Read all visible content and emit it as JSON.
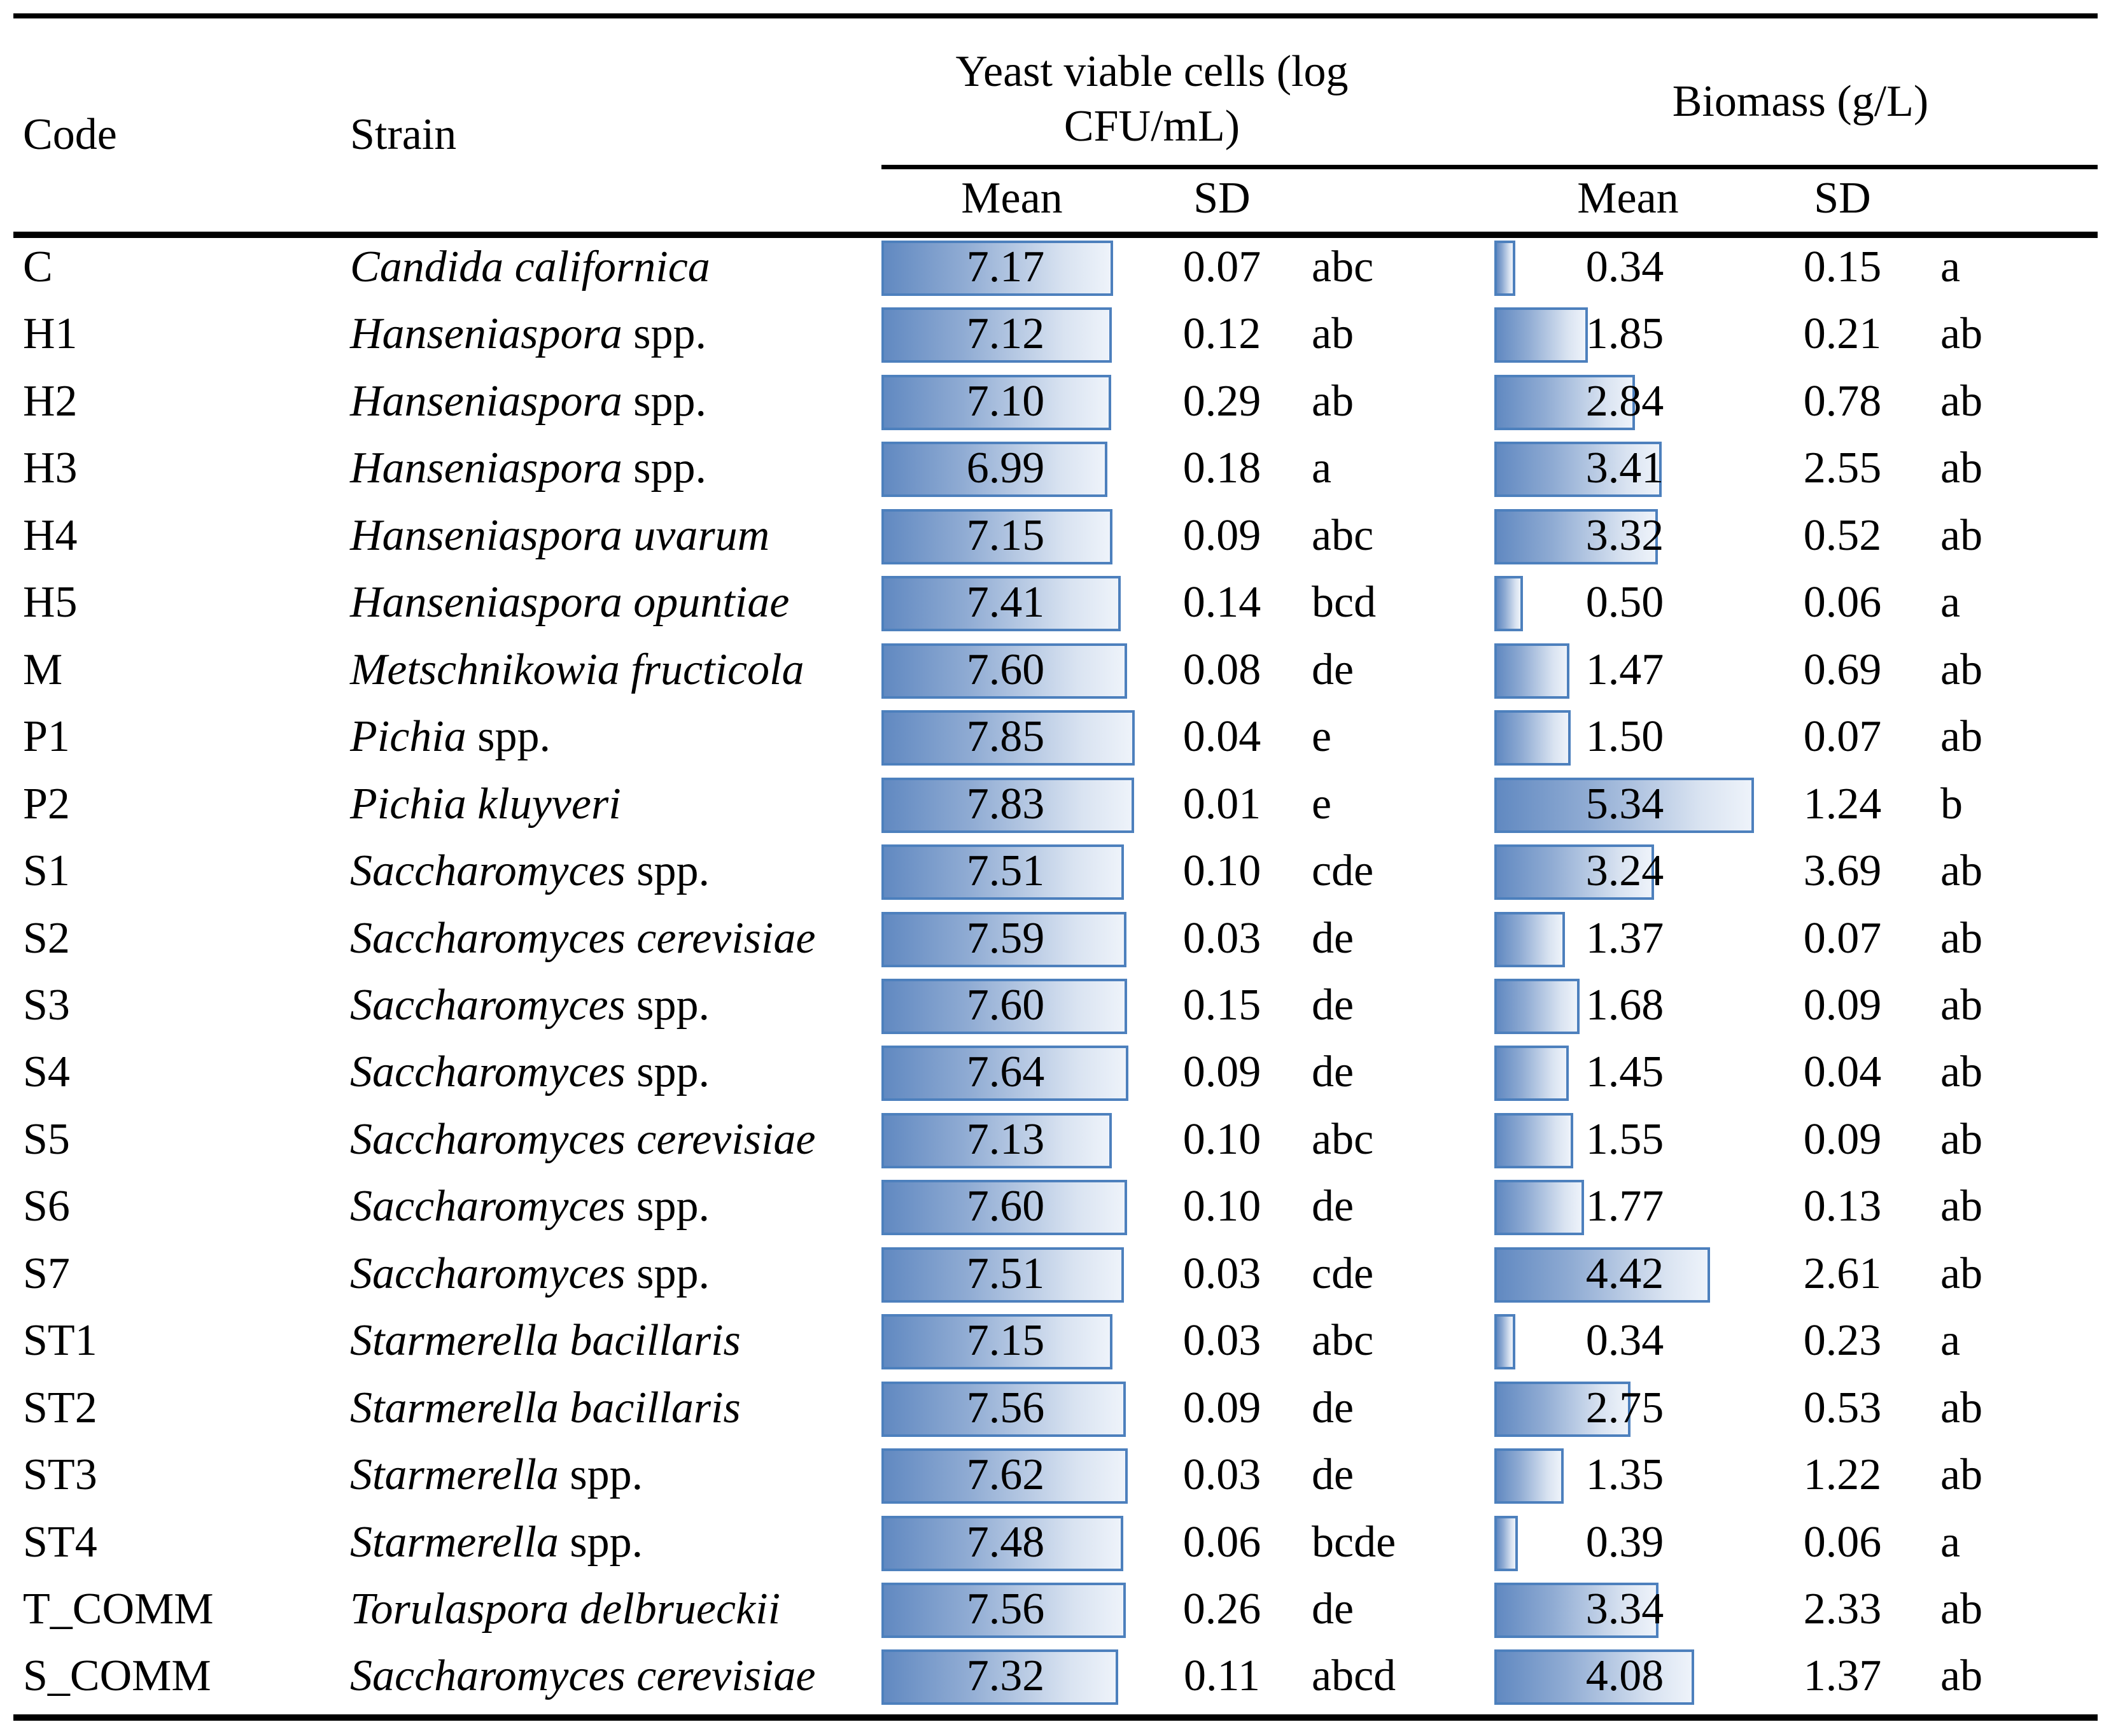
{
  "header": {
    "code": "Code",
    "strain": "Strain",
    "group_cfu_line1": "Yeast viable cells (log",
    "group_cfu_line2": "CFU/mL)",
    "group_biomass": "Biomass (g/L)",
    "cfu_mean": "Mean",
    "cfu_sd": "SD",
    "bio_mean": "Mean",
    "bio_sd": "SD"
  },
  "colors": {
    "bar_border": "#4d80bd",
    "bar_fill_start": "#6189c1",
    "bar_fill_end": "#eef3fa",
    "rule": "#000000"
  },
  "chart_data": {
    "type": "table",
    "note": "Table with in-cell horizontal data bars; bar length proportional to Mean value, scaled to column maximum",
    "columns": [
      "Code",
      "Strain",
      "Yeast viable cells (log CFU/mL) Mean",
      "Yeast viable cells SD",
      "Yeast viable cells significance",
      "Biomass (g/L) Mean",
      "Biomass SD",
      "Biomass significance"
    ],
    "cfu_bar_max": 7.85,
    "bio_bar_max": 5.34,
    "rows": [
      {
        "code": "C",
        "strain_it": "Candida californica",
        "strain_rm": "",
        "cfu_mean": "7.17",
        "cfu_sd": "0.07",
        "cfu_sig": "abc",
        "bio_mean": "0.34",
        "bio_sd": "0.15",
        "bio_sig": "a"
      },
      {
        "code": "H1",
        "strain_it": "Hanseniaspora",
        "strain_rm": "spp.",
        "cfu_mean": "7.12",
        "cfu_sd": "0.12",
        "cfu_sig": "ab",
        "bio_mean": "1.85",
        "bio_sd": "0.21",
        "bio_sig": "ab"
      },
      {
        "code": "H2",
        "strain_it": "Hanseniaspora",
        "strain_rm": "spp.",
        "cfu_mean": "7.10",
        "cfu_sd": "0.29",
        "cfu_sig": "ab",
        "bio_mean": "2.84",
        "bio_sd": "0.78",
        "bio_sig": "ab"
      },
      {
        "code": "H3",
        "strain_it": "Hanseniaspora",
        "strain_rm": "spp.",
        "cfu_mean": "6.99",
        "cfu_sd": "0.18",
        "cfu_sig": "a",
        "bio_mean": "3.41",
        "bio_sd": "2.55",
        "bio_sig": "ab"
      },
      {
        "code": "H4",
        "strain_it": "Hanseniaspora uvarum",
        "strain_rm": "",
        "cfu_mean": "7.15",
        "cfu_sd": "0.09",
        "cfu_sig": "abc",
        "bio_mean": "3.32",
        "bio_sd": "0.52",
        "bio_sig": "ab"
      },
      {
        "code": "H5",
        "strain_it": "Hanseniaspora opuntiae",
        "strain_rm": "",
        "cfu_mean": "7.41",
        "cfu_sd": "0.14",
        "cfu_sig": "bcd",
        "bio_mean": "0.50",
        "bio_sd": "0.06",
        "bio_sig": "a"
      },
      {
        "code": "M",
        "strain_it": "Metschnikowia fructicola",
        "strain_rm": "",
        "cfu_mean": "7.60",
        "cfu_sd": "0.08",
        "cfu_sig": "de",
        "bio_mean": "1.47",
        "bio_sd": "0.69",
        "bio_sig": "ab"
      },
      {
        "code": "P1",
        "strain_it": "Pichia",
        "strain_rm": "spp.",
        "cfu_mean": "7.85",
        "cfu_sd": "0.04",
        "cfu_sig": "e",
        "bio_mean": "1.50",
        "bio_sd": "0.07",
        "bio_sig": "ab"
      },
      {
        "code": "P2",
        "strain_it": "Pichia kluyveri",
        "strain_rm": "",
        "cfu_mean": "7.83",
        "cfu_sd": "0.01",
        "cfu_sig": "e",
        "bio_mean": "5.34",
        "bio_sd": "1.24",
        "bio_sig": "b"
      },
      {
        "code": "S1",
        "strain_it": "Saccharomyces",
        "strain_rm": "spp.",
        "cfu_mean": "7.51",
        "cfu_sd": "0.10",
        "cfu_sig": "cde",
        "bio_mean": "3.24",
        "bio_sd": "3.69",
        "bio_sig": "ab"
      },
      {
        "code": "S2",
        "strain_it": "Saccharomyces cerevisiae",
        "strain_rm": "",
        "cfu_mean": "7.59",
        "cfu_sd": "0.03",
        "cfu_sig": "de",
        "bio_mean": "1.37",
        "bio_sd": "0.07",
        "bio_sig": "ab"
      },
      {
        "code": "S3",
        "strain_it": "Saccharomyces",
        "strain_rm": "spp.",
        "cfu_mean": "7.60",
        "cfu_sd": "0.15",
        "cfu_sig": "de",
        "bio_mean": "1.68",
        "bio_sd": "0.09",
        "bio_sig": "ab"
      },
      {
        "code": "S4",
        "strain_it": "Saccharomyces",
        "strain_rm": "spp.",
        "cfu_mean": "7.64",
        "cfu_sd": "0.09",
        "cfu_sig": "de",
        "bio_mean": "1.45",
        "bio_sd": "0.04",
        "bio_sig": "ab"
      },
      {
        "code": "S5",
        "strain_it": "Saccharomyces cerevisiae",
        "strain_rm": "",
        "cfu_mean": "7.13",
        "cfu_sd": "0.10",
        "cfu_sig": "abc",
        "bio_mean": "1.55",
        "bio_sd": "0.09",
        "bio_sig": "ab"
      },
      {
        "code": "S6",
        "strain_it": "Saccharomyces",
        "strain_rm": "spp.",
        "cfu_mean": "7.60",
        "cfu_sd": "0.10",
        "cfu_sig": "de",
        "bio_mean": "1.77",
        "bio_sd": "0.13",
        "bio_sig": "ab"
      },
      {
        "code": "S7",
        "strain_it": "Saccharomyces",
        "strain_rm": "spp.",
        "cfu_mean": "7.51",
        "cfu_sd": "0.03",
        "cfu_sig": "cde",
        "bio_mean": "4.42",
        "bio_sd": "2.61",
        "bio_sig": "ab"
      },
      {
        "code": "ST1",
        "strain_it": "Starmerella bacillaris",
        "strain_rm": "",
        "cfu_mean": "7.15",
        "cfu_sd": "0.03",
        "cfu_sig": "abc",
        "bio_mean": "0.34",
        "bio_sd": "0.23",
        "bio_sig": "a"
      },
      {
        "code": "ST2",
        "strain_it": "Starmerella bacillaris",
        "strain_rm": "",
        "cfu_mean": "7.56",
        "cfu_sd": "0.09",
        "cfu_sig": "de",
        "bio_mean": "2.75",
        "bio_sd": "0.53",
        "bio_sig": "ab"
      },
      {
        "code": "ST3",
        "strain_it": "Starmerella",
        "strain_rm": "spp.",
        "cfu_mean": "7.62",
        "cfu_sd": "0.03",
        "cfu_sig": "de",
        "bio_mean": "1.35",
        "bio_sd": "1.22",
        "bio_sig": "ab"
      },
      {
        "code": "ST4",
        "strain_it": "Starmerella",
        "strain_rm": "spp.",
        "cfu_mean": "7.48",
        "cfu_sd": "0.06",
        "cfu_sig": "bcde",
        "bio_mean": "0.39",
        "bio_sd": "0.06",
        "bio_sig": "a"
      },
      {
        "code": "T_COMM",
        "strain_it": "Torulaspora delbrueckii",
        "strain_rm": "",
        "cfu_mean": "7.56",
        "cfu_sd": "0.26",
        "cfu_sig": "de",
        "bio_mean": "3.34",
        "bio_sd": "2.33",
        "bio_sig": "ab"
      },
      {
        "code": "S_COMM",
        "strain_it": "Saccharomyces cerevisiae",
        "strain_rm": "",
        "cfu_mean": "7.32",
        "cfu_sd": "0.11",
        "cfu_sig": "abcd",
        "bio_mean": "4.08",
        "bio_sd": "1.37",
        "bio_sig": "ab"
      }
    ]
  }
}
